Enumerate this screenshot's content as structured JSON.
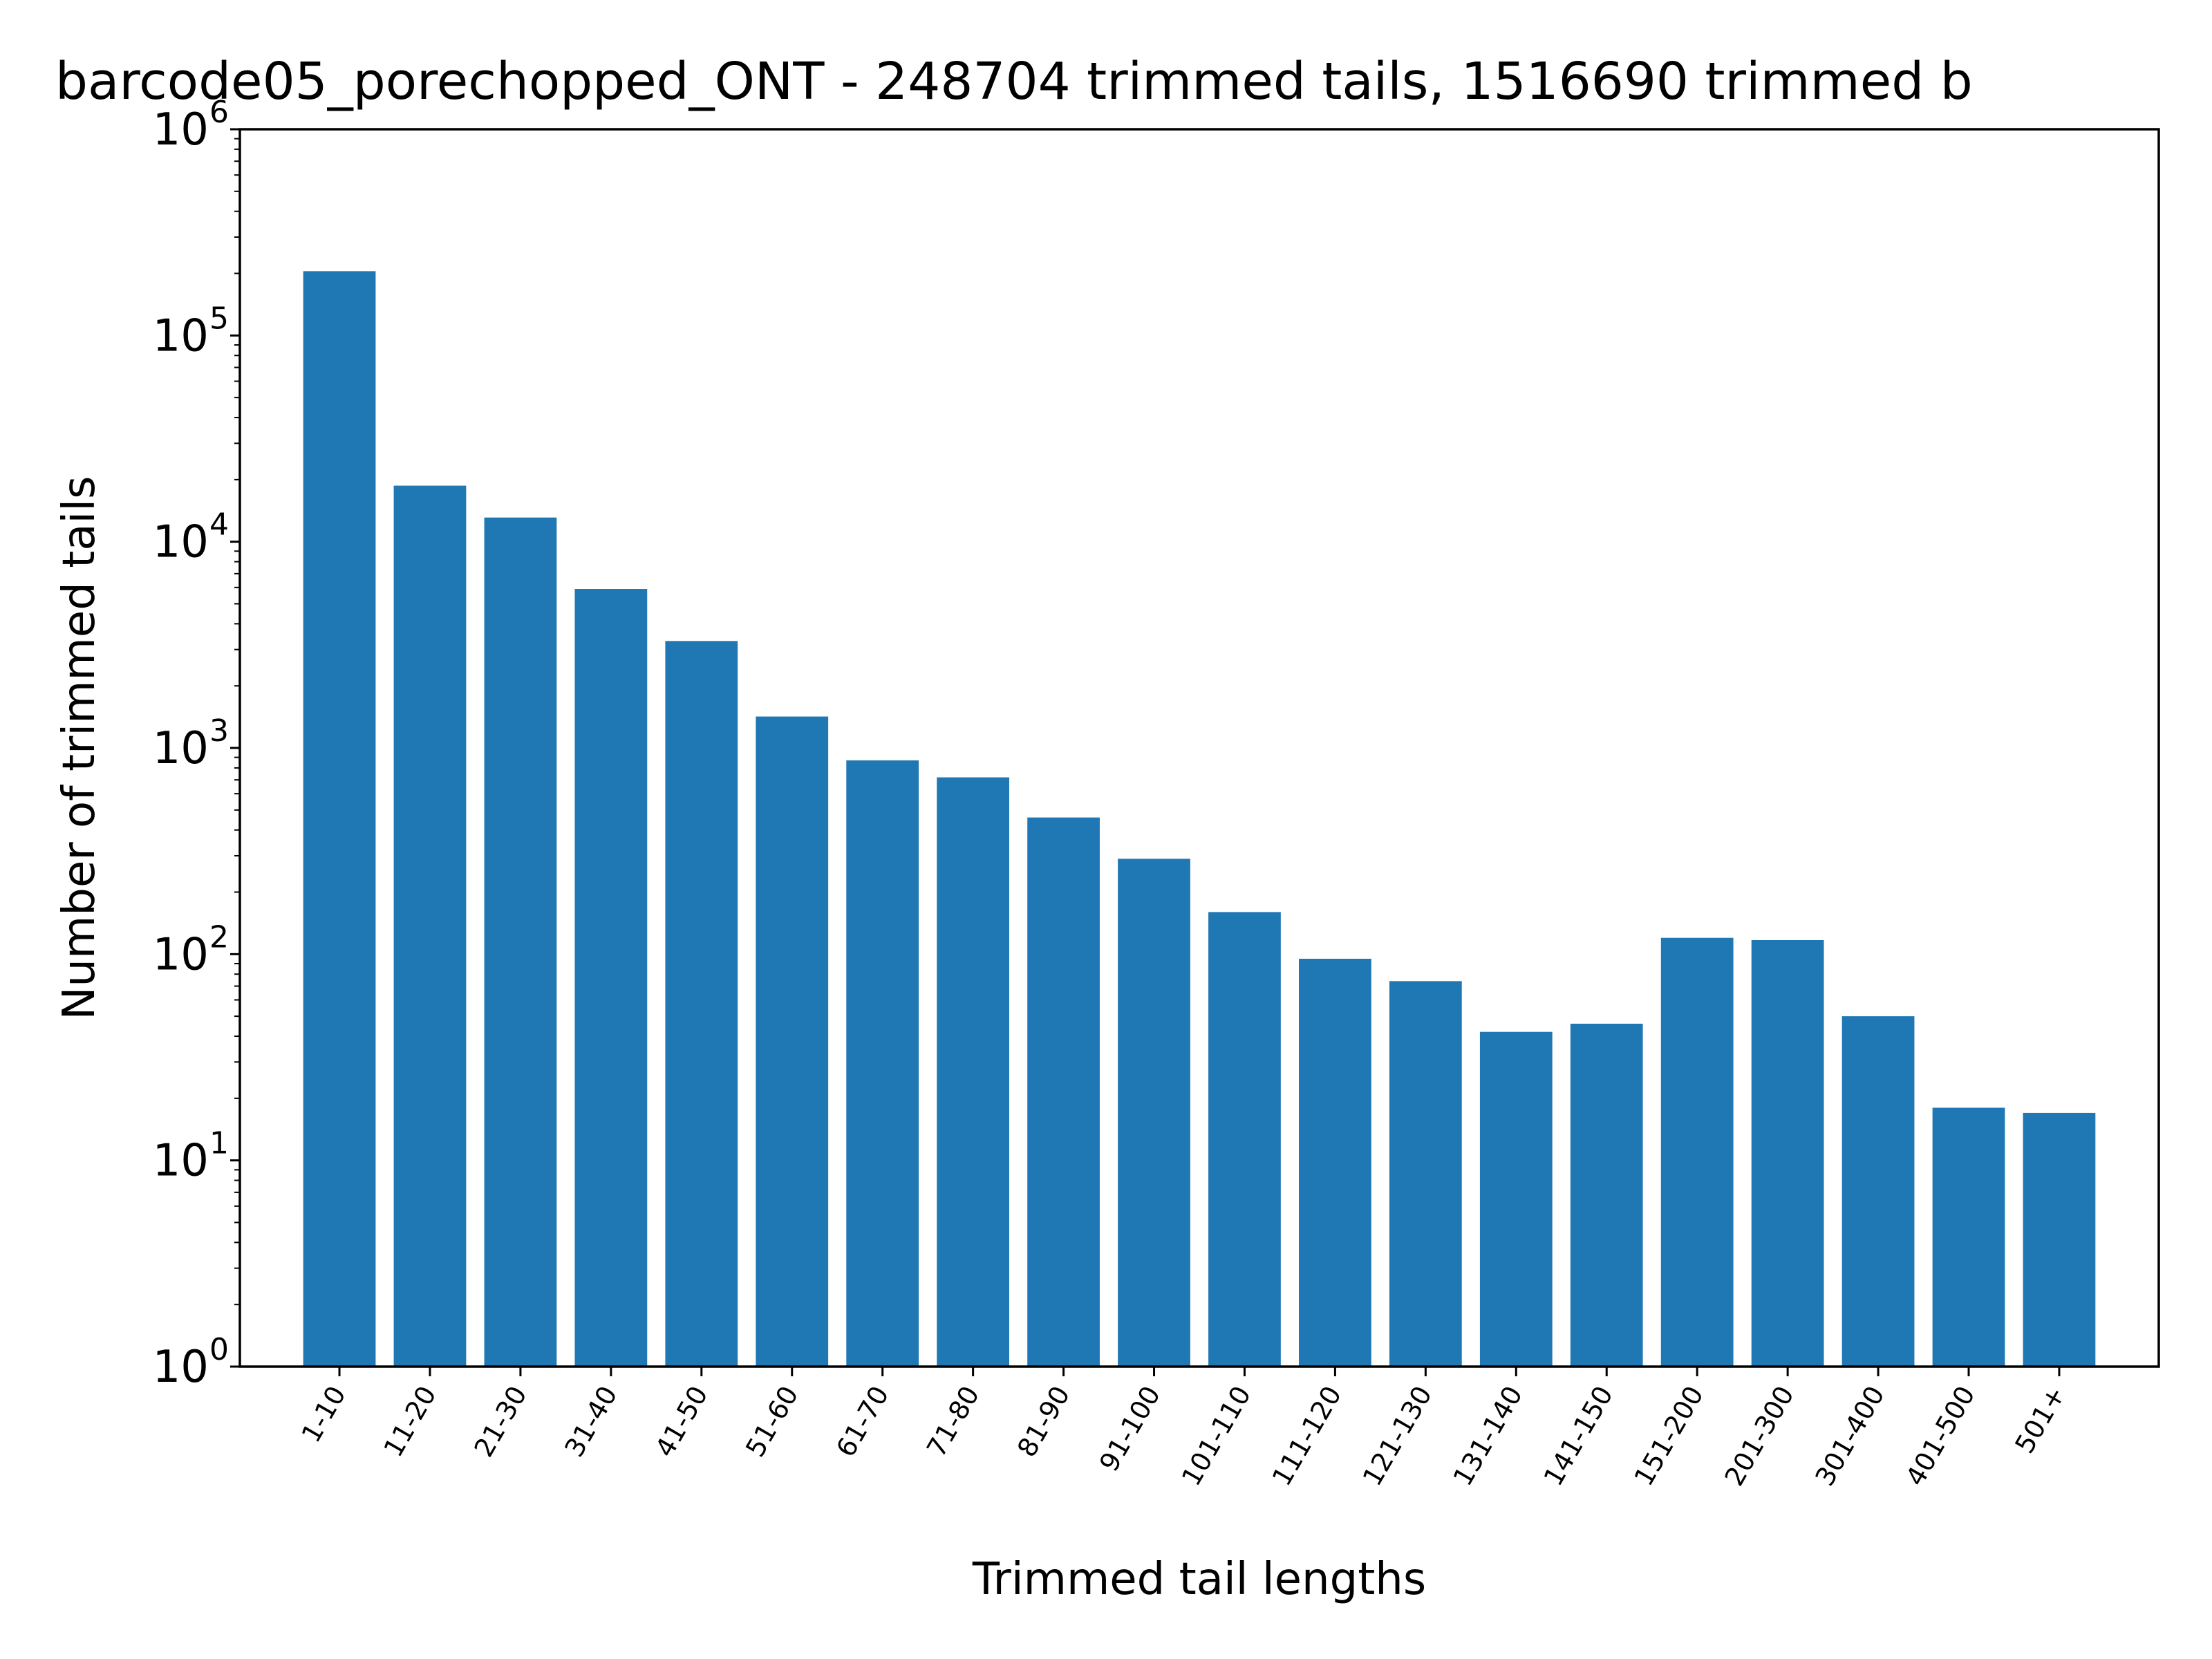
{
  "chart_data": {
    "type": "bar",
    "title": "barcode05_porechopped_ONT - 248704 trimmed tails, 1516690 trimmed b",
    "xlabel": "Trimmed tail lengths",
    "ylabel": "Number of trimmed tails",
    "yscale": "log",
    "ylim": [
      1,
      1000000
    ],
    "yticks": [
      {
        "base": "10",
        "exp": "0"
      },
      {
        "base": "10",
        "exp": "1"
      },
      {
        "base": "10",
        "exp": "2"
      },
      {
        "base": "10",
        "exp": "3"
      },
      {
        "base": "10",
        "exp": "4"
      },
      {
        "base": "10",
        "exp": "5"
      },
      {
        "base": "10",
        "exp": "6"
      }
    ],
    "grid": false,
    "bar_color": "#1f77b4",
    "categories": [
      "1-10",
      "11-20",
      "21-30",
      "31-40",
      "41-50",
      "51-60",
      "61-70",
      "71-80",
      "81-90",
      "91-100",
      "101-110",
      "111-120",
      "121-130",
      "131-140",
      "141-150",
      "151-200",
      "201-300",
      "301-400",
      "401-500",
      "501+"
    ],
    "values": [
      205000,
      18700,
      13100,
      5900,
      3300,
      1420,
      870,
      720,
      460,
      290,
      160,
      95,
      74,
      42,
      46,
      120,
      117,
      50,
      18,
      17
    ]
  }
}
